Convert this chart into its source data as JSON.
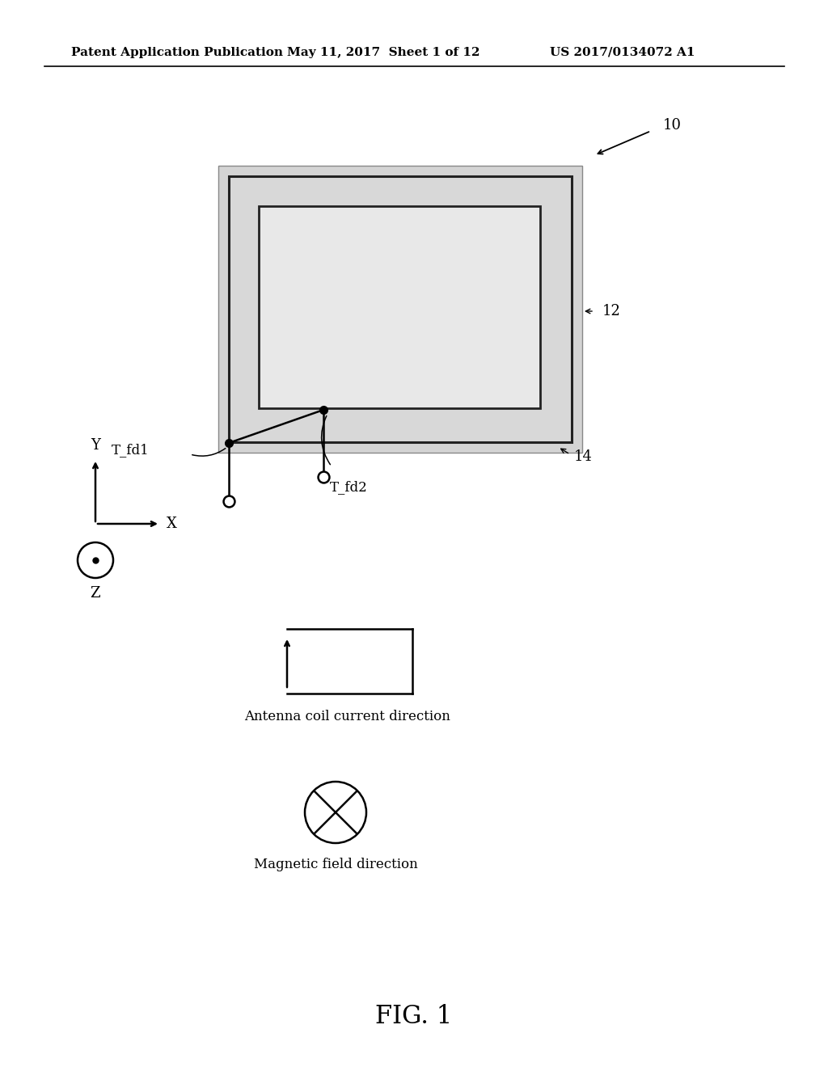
{
  "title_left": "Patent Application Publication",
  "title_mid": "May 11, 2017  Sheet 1 of 12",
  "title_right": "US 2017/0134072 A1",
  "bg_color": "#ffffff",
  "label_10": "10",
  "label_12": "12",
  "label_14": "14",
  "label_T_fd1": "T_fd1",
  "label_T_fd2": "T_fd2",
  "antenna_caption": "Antenna coil current direction",
  "magnetic_caption": "Magnetic field direction",
  "fig_label": "FIG. 1"
}
